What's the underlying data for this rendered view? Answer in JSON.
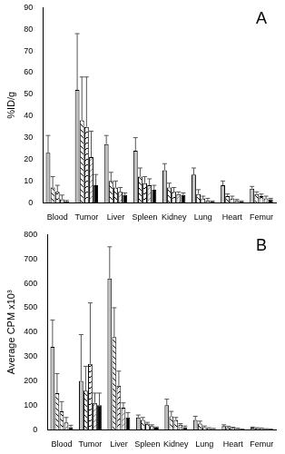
{
  "chart_data": [
    {
      "type": "bar",
      "title": "A",
      "y_label": "%ID/g",
      "categories": [
        "Blood",
        "Tumor",
        "Liver",
        "Spleen",
        "Kidney",
        "Lung",
        "Heart",
        "Femur"
      ],
      "series": [
        {
          "color": "#c0c0c0",
          "values": [
            23,
            52,
            27,
            24,
            15,
            13,
            8,
            6.5
          ],
          "errors": [
            8,
            26,
            4,
            6,
            3,
            3,
            2,
            1
          ]
        },
        {
          "color": "#ffffff",
          "values": [
            7,
            38,
            10,
            12,
            7,
            4,
            3,
            4
          ],
          "errors": [
            5,
            20,
            4,
            4,
            2,
            2,
            1,
            1
          ]
        },
        {
          "color": "#f2f2f2",
          "values": [
            5,
            35,
            7,
            9,
            5,
            2,
            2,
            3
          ],
          "errors": [
            3,
            23,
            3,
            3,
            2,
            1,
            1,
            1
          ]
        },
        {
          "color": "#e6e6e6",
          "values": [
            1.5,
            21,
            5,
            8,
            4,
            1,
            1,
            2
          ],
          "errors": [
            2,
            12,
            2,
            3,
            1,
            1,
            0.5,
            1
          ]
        },
        {
          "color": "#000000",
          "values": [
            0.5,
            8,
            3.5,
            6,
            3.5,
            0.5,
            0.5,
            1.5
          ],
          "errors": [
            0.5,
            5,
            1,
            2,
            1,
            0.3,
            0.3,
            0.5
          ]
        }
      ],
      "ylim": [
        0,
        90
      ],
      "yticks": [
        0,
        10,
        20,
        30,
        40,
        50,
        60,
        70,
        80,
        90
      ],
      "grid": false
    },
    {
      "type": "bar",
      "title": "B",
      "y_label": "Average CPM x10³",
      "categories": [
        "Blood",
        "Tumor",
        "Liver",
        "Spleen",
        "Kidney",
        "Lung",
        "Heart",
        "Femur"
      ],
      "series": [
        {
          "color": "#c0c0c0",
          "values": [
            340,
            200,
            620,
            50,
            100,
            40,
            15,
            8
          ],
          "errors": [
            110,
            190,
            130,
            10,
            25,
            15,
            5,
            3
          ]
        },
        {
          "color": "#ffffff",
          "values": [
            150,
            160,
            380,
            40,
            55,
            25,
            10,
            6
          ],
          "errors": [
            80,
            100,
            120,
            10,
            20,
            10,
            4,
            2
          ]
        },
        {
          "color": "#f2f2f2",
          "values": [
            75,
            270,
            180,
            25,
            40,
            10,
            7,
            5
          ],
          "errors": [
            40,
            250,
            60,
            5,
            10,
            5,
            3,
            2
          ]
        },
        {
          "color": "#e6e6e6",
          "values": [
            30,
            110,
            90,
            15,
            20,
            5,
            4,
            3
          ],
          "errors": [
            20,
            40,
            20,
            5,
            5,
            3,
            2,
            1
          ]
        },
        {
          "color": "#000000",
          "values": [
            10,
            100,
            50,
            8,
            10,
            3,
            2,
            2
          ],
          "errors": [
            8,
            50,
            20,
            3,
            5,
            2,
            1,
            1
          ]
        }
      ],
      "ylim": [
        0,
        800
      ],
      "yticks": [
        0,
        100,
        200,
        300,
        400,
        500,
        600,
        700,
        800
      ],
      "grid": false
    }
  ]
}
